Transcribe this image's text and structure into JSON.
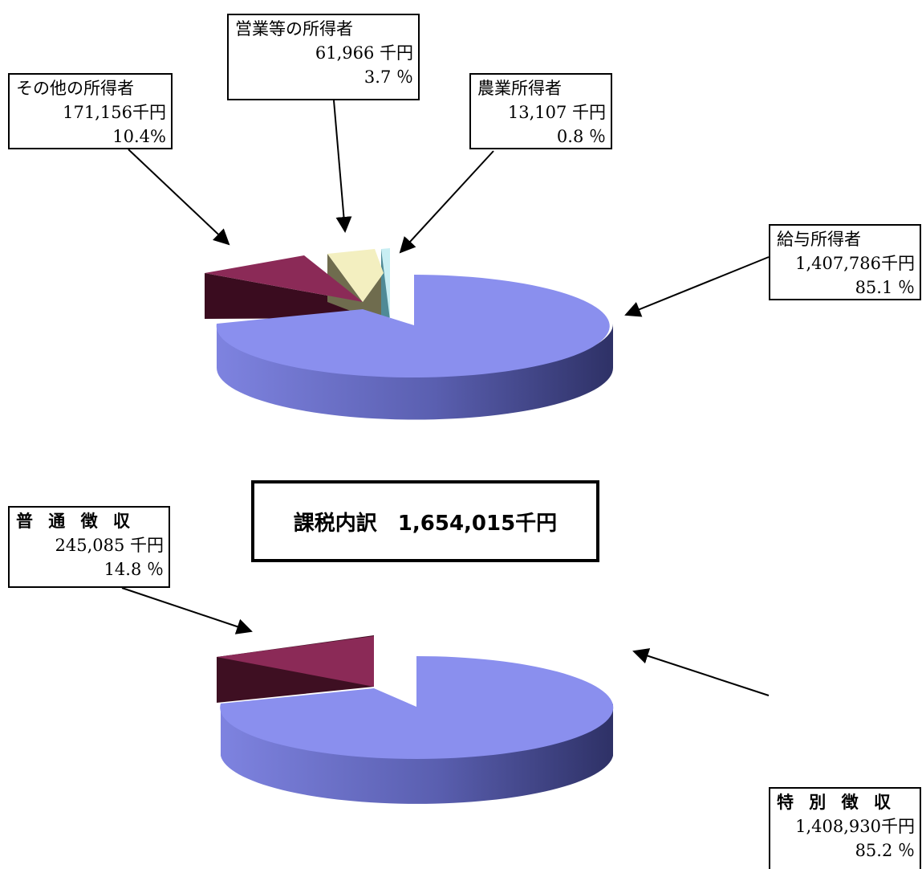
{
  "title": "課税内訳　1,654,015千円",
  "chart_data": [
    {
      "type": "pie",
      "slices": [
        {
          "name": "給与所得者",
          "value_label": "1,407,786千円",
          "value": 1407786,
          "percent_label": "85.1 ％",
          "percent": 85.1,
          "color": "#8a8fee"
        },
        {
          "name": "その他の所得者",
          "value_label": "171,156千円",
          "value": 171156,
          "percent_label": "10.4%",
          "percent": 10.4,
          "color": "#8b2a57"
        },
        {
          "name": "営業等の所得者",
          "value_label": "61,966 千円",
          "value": 61966,
          "percent_label": "3.7 ％",
          "percent": 3.7,
          "color": "#f3efc0"
        },
        {
          "name": "農業所得者",
          "value_label": "13,107 千円",
          "value": 13107,
          "percent_label": "0.8 ％",
          "percent": 0.8,
          "color": "#c8eef3"
        }
      ]
    },
    {
      "type": "pie",
      "slices": [
        {
          "name": "特 別 徴 収",
          "value_label": "1,408,930千円",
          "value": 1408930,
          "percent_label": "85.2 ％",
          "percent": 85.2,
          "color": "#8a8fee"
        },
        {
          "name": "普 通 徴 収",
          "value_label": "245,085 千円",
          "value": 245085,
          "percent_label": "14.8 ％",
          "percent": 14.8,
          "color": "#8b2a57"
        }
      ]
    }
  ]
}
